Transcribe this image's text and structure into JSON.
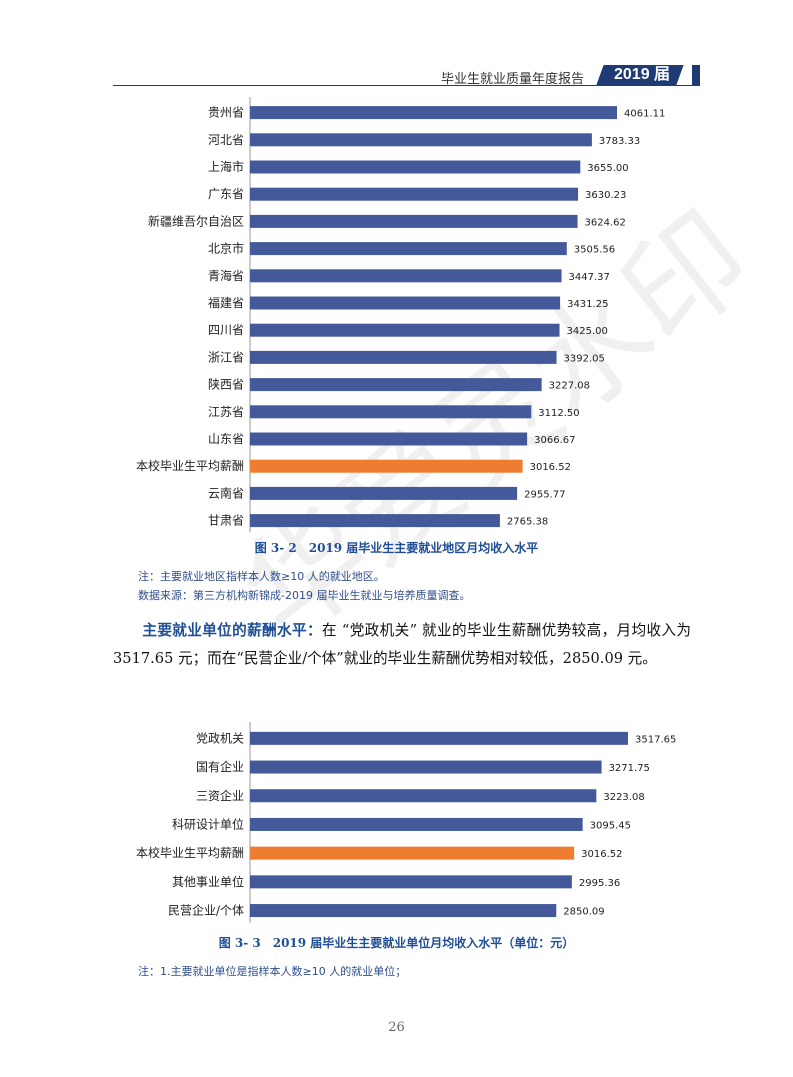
{
  "header": {
    "title": "毕业生就业质量年度报告",
    "badge": "2019 届"
  },
  "chart_data": [
    {
      "type": "bar",
      "orientation": "horizontal",
      "categories": [
        "贵州省",
        "河北省",
        "上海市",
        "广东省",
        "新疆维吾尔自治区",
        "北京市",
        "青海省",
        "福建省",
        "四川省",
        "浙江省",
        "陕西省",
        "江苏省",
        "山东省",
        "本校毕业生平均薪酬",
        "云南省",
        "甘肃省"
      ],
      "values": [
        4061.11,
        3783.33,
        3655.0,
        3630.23,
        3624.62,
        3505.56,
        3447.37,
        3431.25,
        3425.0,
        3392.05,
        3227.08,
        3112.5,
        3066.67,
        3016.52,
        2955.77,
        2765.38
      ],
      "value_labels": [
        "4061.11",
        "3783.33",
        "3655.00",
        "3630.23",
        "3624.62",
        "3505.56",
        "3447.37",
        "3431.25",
        "3425.00",
        "3392.05",
        "3227.08",
        "3112.50",
        "3066.67",
        "3016.52",
        "2955.77",
        "2765.38"
      ],
      "highlight_index": 13,
      "colors": {
        "bar": "#44599a",
        "highlight": "#ee7d31"
      },
      "caption": "图 3- 2　2019 届毕业生主要就业地区月均收入水平"
    },
    {
      "type": "bar",
      "orientation": "horizontal",
      "categories": [
        "党政机关",
        "国有企业",
        "三资企业",
        "科研设计单位",
        "本校毕业生平均薪酬",
        "其他事业单位",
        "民营企业/个体"
      ],
      "values": [
        3517.65,
        3271.75,
        3223.08,
        3095.45,
        3016.52,
        2995.36,
        2850.09
      ],
      "value_labels": [
        "3517.65",
        "3271.75",
        "3223.08",
        "3095.45",
        "3016.52",
        "2995.36",
        "2850.09"
      ],
      "highlight_index": 4,
      "colors": {
        "bar": "#44599a",
        "highlight": "#ee7d31"
      },
      "caption": "图 3- 3　2019 届毕业生主要就业单位月均收入水平（单位：元）"
    }
  ],
  "notes": {
    "note1": "注：主要就业地区指样本人数≥10 人的就业地区。",
    "source1": "数据来源：第三方机构新锦成-2019 届毕业生就业与培养质量调查。",
    "note2": "注：1.主要就业单位是指样本人数≥10 人的就业单位；"
  },
  "paragraph": {
    "highlight": "主要就业单位的薪酬水平：",
    "body": "在 “党政机关” 就业的毕业生薪酬优势较高，月均收入为 3517.65 元；而在“民营企业/个体”就业的毕业生薪酬优势相对较低，2850.09 元。"
  },
  "page_number": "26",
  "watermark": "华爱灵水印"
}
